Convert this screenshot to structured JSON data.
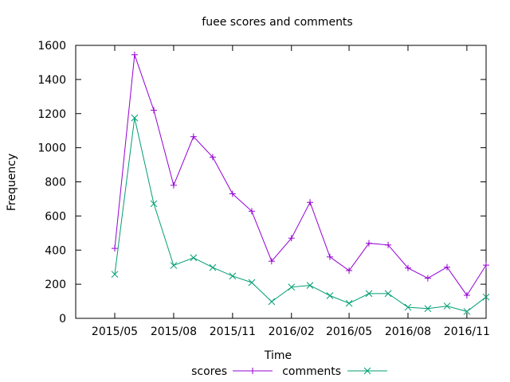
{
  "chart_data": {
    "type": "line",
    "title": "fuee scores and comments",
    "xlabel": "Time",
    "ylabel": "Frequency",
    "xlim": [
      "2015-03-01",
      "2016-12-01"
    ],
    "ylim": [
      0,
      1600
    ],
    "x_ticks": [
      "2015/05",
      "2015/08",
      "2015/11",
      "2016/02",
      "2016/05",
      "2016/08",
      "2016/11"
    ],
    "y_ticks": [
      0,
      200,
      400,
      600,
      800,
      1000,
      1200,
      1400,
      1600
    ],
    "grid": false,
    "legend_position": "bottom-center",
    "x": [
      "2015-05-01",
      "2015-06-01",
      "2015-07-01",
      "2015-08-01",
      "2015-09-01",
      "2015-10-01",
      "2015-11-01",
      "2015-12-01",
      "2016-01-01",
      "2016-02-01",
      "2016-03-01",
      "2016-04-01",
      "2016-05-01",
      "2016-06-01",
      "2016-07-01",
      "2016-08-01",
      "2016-09-01",
      "2016-10-01",
      "2016-11-01",
      "2016-12-01"
    ],
    "series": [
      {
        "name": "scores",
        "color": "#9400d3",
        "marker": "plus",
        "values": [
          410,
          1545,
          1220,
          780,
          1065,
          945,
          730,
          628,
          335,
          470,
          680,
          360,
          280,
          440,
          430,
          295,
          235,
          300,
          135,
          312
        ]
      },
      {
        "name": "comments",
        "color": "#009e73",
        "marker": "cross",
        "values": [
          258,
          1175,
          672,
          310,
          355,
          298,
          248,
          210,
          98,
          183,
          193,
          133,
          88,
          145,
          145,
          65,
          57,
          72,
          40,
          125
        ]
      }
    ]
  }
}
